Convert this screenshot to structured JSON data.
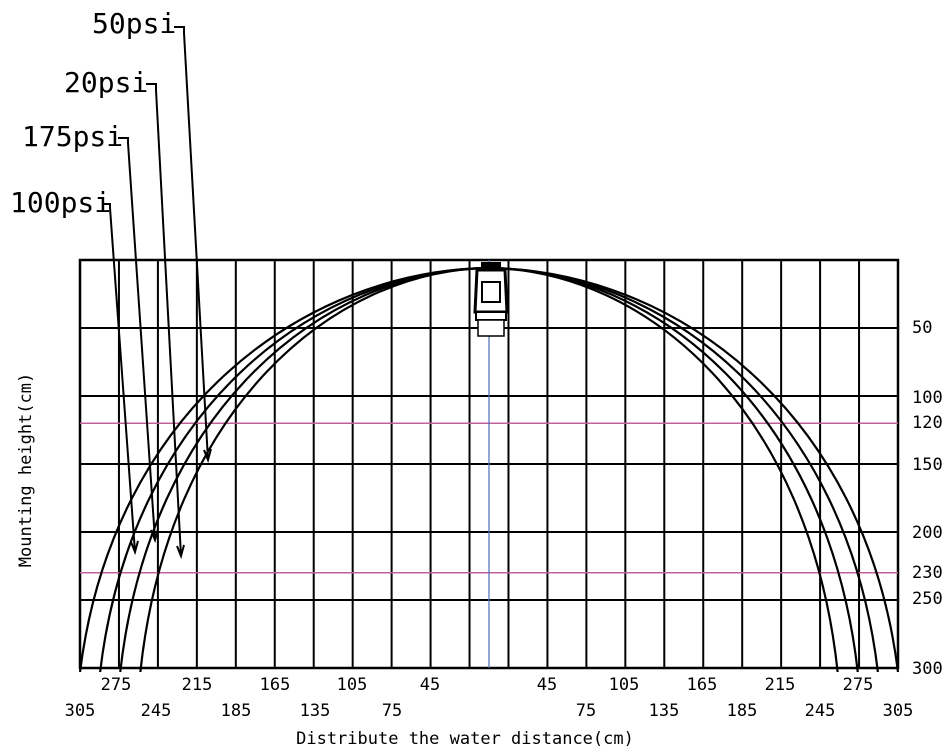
{
  "chart_data": {
    "type": "line",
    "title": "",
    "xlabel": "Distribute the water distance(cm)",
    "ylabel": "Mounting height(cm)",
    "x_tick_labels_row1": [
      "275",
      "215",
      "165",
      "105",
      "45",
      "45",
      "105",
      "165",
      "215",
      "275"
    ],
    "x_tick_labels_row2": [
      "305",
      "245",
      "185",
      "135",
      "75",
      "75",
      "135",
      "185",
      "245",
      "305"
    ],
    "y_tick_labels": [
      "50",
      "100",
      "120",
      "150",
      "200",
      "230",
      "250",
      "300"
    ],
    "x_range_cm": [
      -305,
      305
    ],
    "y_range_cm": [
      0,
      300
    ],
    "reference_heights_cm": [
      120,
      230
    ],
    "colors": {
      "curves": "#000000",
      "grid": "#000000",
      "reference_lines": "#c0609a",
      "center_line": "#4a6fb5"
    },
    "series": [
      {
        "name": "100psi",
        "spread_at_300cm": 305
      },
      {
        "name": "175psi",
        "spread_at_300cm": 290
      },
      {
        "name": "20psi",
        "spread_at_300cm": 275
      },
      {
        "name": "50psi",
        "spread_at_300cm": 260
      }
    ]
  }
}
